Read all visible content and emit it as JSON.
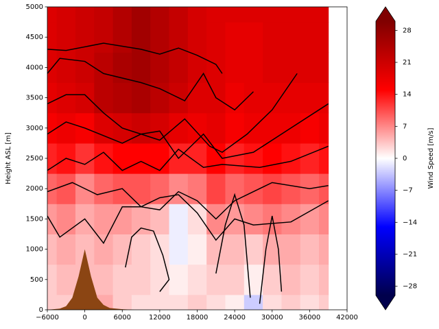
{
  "chart_data": {
    "type": "contour",
    "ylabel": "Height ASL [m]",
    "xlim": [
      -6000,
      42000
    ],
    "xticks": [
      {
        "value": -6000,
        "label": "−6000"
      },
      0,
      6000,
      12000,
      18000,
      24000,
      30000,
      36000,
      42000
    ],
    "ylim": [
      0,
      5000
    ],
    "yticks": [
      0,
      500,
      1000,
      1500,
      2000,
      2500,
      3000,
      3500,
      4000,
      4500,
      5000
    ],
    "field": {
      "x": [
        -6000,
        -3000,
        0,
        3000,
        6000,
        9000,
        12000,
        15000,
        18000,
        21000,
        24000,
        27000,
        30000,
        33000,
        36000,
        39000
      ],
      "y": [
        0,
        500,
        1000,
        1500,
        2000,
        2500,
        3000,
        3500,
        4000,
        4500,
        5000
      ],
      "values": [
        [
          3,
          3,
          4,
          5,
          3,
          2,
          2,
          2,
          3,
          2,
          1,
          -3,
          2,
          3,
          2,
          3
        ],
        [
          3,
          4,
          4,
          4,
          3,
          3,
          2,
          1,
          2,
          3,
          3,
          1,
          3,
          4,
          3,
          4
        ],
        [
          4,
          5,
          4,
          5,
          4,
          3,
          2,
          -1,
          1,
          4,
          4,
          3,
          5,
          5,
          4,
          5
        ],
        [
          6,
          7,
          5,
          6,
          6,
          5,
          4,
          -1,
          2,
          7,
          6,
          7,
          8,
          7,
          6,
          7
        ],
        [
          9,
          10,
          7,
          9,
          10,
          10,
          9,
          7,
          8,
          11,
          9,
          10,
          11,
          10,
          9,
          10
        ],
        [
          13,
          14,
          12,
          14,
          15,
          15,
          15,
          13,
          13,
          15,
          13,
          14,
          15,
          14,
          13,
          14
        ],
        [
          16,
          17,
          16,
          19,
          20,
          21,
          20,
          18,
          17,
          18,
          16,
          17,
          17,
          17,
          16,
          17
        ],
        [
          18,
          19,
          20,
          23,
          24,
          25,
          23,
          21,
          19,
          19,
          17,
          18,
          18,
          18,
          18,
          18
        ],
        [
          19,
          20,
          21,
          23,
          25,
          26,
          24,
          22,
          20,
          19,
          18,
          18,
          19,
          19,
          19,
          19
        ],
        [
          19,
          20,
          21,
          22,
          24,
          26,
          24,
          22,
          20,
          19,
          18,
          18,
          19,
          19,
          19,
          19
        ],
        [
          19,
          20,
          21,
          22,
          24,
          26,
          24,
          22,
          20,
          19,
          19,
          19,
          19,
          19,
          19,
          19
        ]
      ]
    },
    "colormap": {
      "colors": [
        "#00004c",
        "#0000ff",
        "#ffffff",
        "#ff0000",
        "#800000"
      ],
      "clim": [
        -30,
        30
      ],
      "ticks": [
        {
          "value": -28,
          "label": "−28"
        },
        {
          "value": -21,
          "label": "−21"
        },
        {
          "value": -14,
          "label": "−14"
        },
        {
          "value": -7,
          "label": "−7"
        },
        0,
        7,
        14,
        21,
        28
      ],
      "label": "Wind Speed [m/s]"
    },
    "streamline_color": "#000000",
    "streamlines": [
      {
        "x": [
          -6000,
          -3000,
          3000,
          9000,
          12000,
          15000,
          18000,
          21000,
          22000
        ],
        "y": [
          4300,
          4280,
          4400,
          4300,
          4220,
          4320,
          4200,
          4050,
          3900
        ]
      },
      {
        "x": [
          -6000,
          -4000,
          0,
          3000,
          9000,
          12000,
          15000,
          16000,
          19000,
          21000,
          24000,
          27000
        ],
        "y": [
          3900,
          4150,
          4100,
          3900,
          3750,
          3650,
          3500,
          3450,
          3900,
          3500,
          3300,
          3600
        ]
      },
      {
        "x": [
          -6000,
          -3000,
          0,
          3000,
          6000,
          9000,
          12000,
          16000,
          20000,
          22000,
          26000,
          30000,
          34000
        ],
        "y": [
          3400,
          3550,
          3550,
          3250,
          3000,
          2900,
          2800,
          3150,
          2700,
          2600,
          2900,
          3300,
          3900
        ]
      },
      {
        "x": [
          -6000,
          -3000,
          0,
          6000,
          9000,
          12000,
          15000,
          19000,
          22000,
          27000,
          33000,
          39000
        ],
        "y": [
          2900,
          3100,
          3000,
          2750,
          2900,
          2950,
          2500,
          2900,
          2500,
          2600,
          3000,
          3400
        ]
      },
      {
        "x": [
          -6000,
          -3000,
          0,
          3000,
          6000,
          9000,
          12000,
          15000,
          19000,
          22000,
          28000,
          33000,
          39000
        ],
        "y": [
          2300,
          2500,
          2400,
          2600,
          2300,
          2450,
          2300,
          2650,
          2350,
          2400,
          2350,
          2450,
          2700
        ]
      },
      {
        "x": [
          -6000,
          -2000,
          2000,
          6000,
          9000,
          12000,
          15000,
          18000,
          21000,
          24000,
          30000,
          36000,
          39000
        ],
        "y": [
          1950,
          2100,
          1900,
          2000,
          1700,
          1650,
          1950,
          1800,
          1500,
          1800,
          2100,
          2000,
          2050
        ]
      },
      {
        "x": [
          -6000,
          -4000,
          0,
          3000,
          6000,
          9000,
          12000,
          15000,
          18000,
          21000,
          24000,
          27000,
          33000,
          39000
        ],
        "y": [
          1550,
          1200,
          1500,
          1100,
          1700,
          1700,
          1850,
          1900,
          1600,
          1150,
          1500,
          1400,
          1450,
          1800
        ]
      },
      {
        "x": [
          6500,
          7500,
          9000,
          11000,
          12500,
          13500,
          12000
        ],
        "y": [
          700,
          1200,
          1350,
          1300,
          900,
          500,
          300
        ]
      },
      {
        "x": [
          21000,
          22500,
          24000,
          25500,
          26500
        ],
        "y": [
          600,
          1400,
          1900,
          1400,
          200
        ]
      },
      {
        "x": [
          28000,
          29000,
          30000,
          31000,
          31500
        ],
        "y": [
          100,
          1000,
          1550,
          1000,
          300
        ]
      }
    ],
    "terrain": {
      "x": [
        -6000,
        -4000,
        -3000,
        -2000,
        -1000,
        0,
        1000,
        2000,
        3000,
        4000,
        6000,
        8000
      ],
      "y": [
        0,
        20,
        60,
        200,
        550,
        1000,
        550,
        200,
        80,
        30,
        10,
        0
      ],
      "color": "#8b4513"
    }
  }
}
